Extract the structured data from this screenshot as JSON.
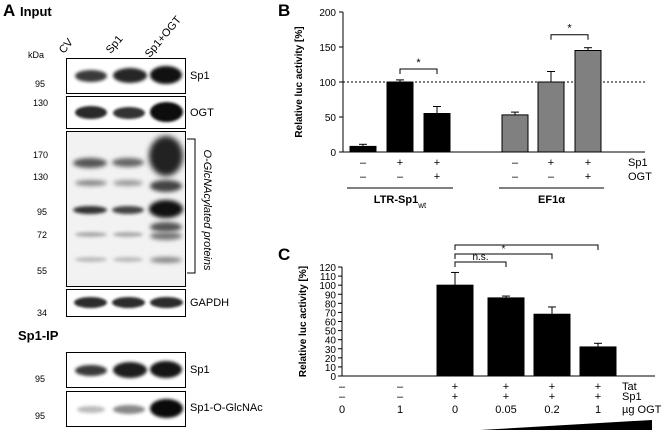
{
  "panelA": {
    "letter": "A",
    "title": "Input",
    "lanes": [
      "CV",
      "Sp1",
      "Sp1+OGT"
    ],
    "kda_label": "kDa",
    "blots": [
      {
        "label": "Sp1",
        "markers": [
          "95"
        ]
      },
      {
        "label": "OGT",
        "markers": [
          "130"
        ]
      },
      {
        "label": "O-GlcNAcylated proteins",
        "markers": [
          "170",
          "130",
          "95",
          "72",
          "55"
        ]
      },
      {
        "label": "GAPDH",
        "markers": [
          "34"
        ]
      }
    ],
    "ip_title": "Sp1-IP",
    "ip_blots": [
      {
        "label": "Sp1",
        "markers": [
          "95"
        ]
      },
      {
        "label": "Sp1-O-GlcNAc",
        "markers": [
          "95"
        ]
      }
    ]
  },
  "panelB": {
    "letter": "B",
    "row_labels": [
      "Sp1",
      "OGT"
    ],
    "groups": [
      {
        "name": "LTR-Sp1",
        "name_sub": "wt",
        "sp1": [
          "–",
          "+",
          "+"
        ],
        "ogt": [
          "–",
          "–",
          "+"
        ]
      },
      {
        "name": "EF1α",
        "name_sub": "",
        "sp1": [
          "–",
          "+",
          "+"
        ],
        "ogt": [
          "–",
          "–",
          "+"
        ]
      }
    ],
    "significance": [
      "*",
      "*"
    ]
  },
  "panelC": {
    "letter": "C",
    "row_labels": [
      "Tat",
      "Sp1",
      "µg OGT"
    ],
    "tat": [
      "–",
      "–",
      "+",
      "+",
      "+",
      "+"
    ],
    "sp1": [
      "–",
      "–",
      "+",
      "+",
      "+",
      "+"
    ],
    "ogt": [
      "0",
      "1",
      "0",
      "0.05",
      "0.2",
      "1"
    ],
    "significance": [
      "n.s.",
      "*",
      "**"
    ]
  },
  "chart_data": [
    {
      "type": "bar",
      "ylabel": "Relative luc activity [%]",
      "ylim": [
        0,
        200
      ],
      "yticks": [
        0,
        50,
        100,
        150,
        200
      ],
      "reference_line": 100,
      "groups": [
        "LTR-Sp1wt",
        "EF1α"
      ],
      "categories": [
        "LTR –/–",
        "LTR +/–",
        "LTR +/+",
        "EF1α –/–",
        "EF1α +/–",
        "EF1α +/+"
      ],
      "values": [
        8,
        100,
        55,
        53,
        100,
        145
      ],
      "errors": [
        3,
        3,
        10,
        4,
        15,
        4
      ],
      "colors": [
        "#000000",
        "#000000",
        "#000000",
        "#808080",
        "#808080",
        "#808080"
      ]
    },
    {
      "type": "bar",
      "ylabel": "Relative luc activity [%]",
      "ylim": [
        0,
        120
      ],
      "yticks": [
        0,
        10,
        20,
        30,
        40,
        50,
        60,
        70,
        80,
        90,
        100,
        110,
        120
      ],
      "categories": [
        "0",
        "1",
        "0",
        "0.05",
        "0.2",
        "1"
      ],
      "values": [
        0,
        0,
        100,
        86,
        68,
        32
      ],
      "errors": [
        0,
        0,
        14,
        2,
        8,
        4
      ],
      "colors": [
        "#000000",
        "#000000",
        "#000000",
        "#000000",
        "#000000",
        "#000000"
      ]
    }
  ]
}
